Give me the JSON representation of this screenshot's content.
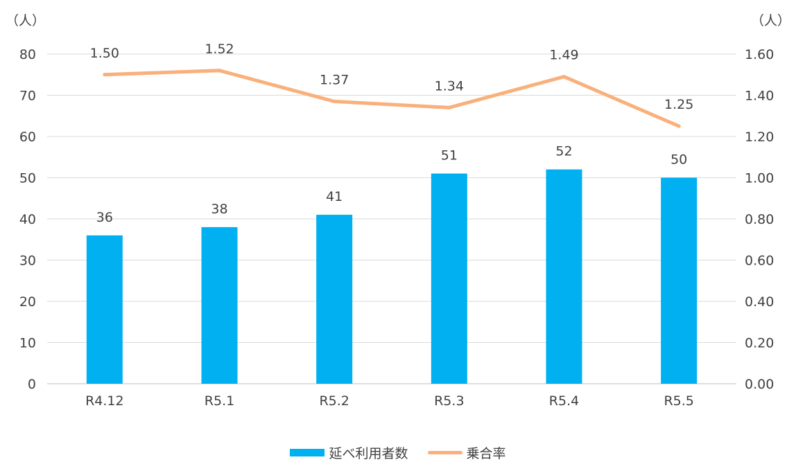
{
  "chart_data": {
    "type": "bar",
    "categories": [
      "R4.12",
      "R5.1",
      "R5.2",
      "R5.3",
      "R5.4",
      "R5.5"
    ],
    "series": [
      {
        "name": "延べ利用者数",
        "type": "bar",
        "axis": "left",
        "color": "#00b0f0",
        "values": [
          36,
          38,
          41,
          51,
          52,
          50
        ],
        "labels": [
          "36",
          "38",
          "41",
          "51",
          "52",
          "50"
        ]
      },
      {
        "name": "乗合率",
        "type": "line",
        "axis": "right",
        "color": "#f9b07a",
        "values": [
          1.5,
          1.52,
          1.37,
          1.34,
          1.49,
          1.25
        ],
        "labels": [
          "1.50",
          "1.52",
          "1.37",
          "1.34",
          "1.49",
          "1.25"
        ]
      }
    ],
    "y_left": {
      "unit": "（人）",
      "ylim": [
        0,
        80
      ],
      "ticks": [
        "0",
        "10",
        "20",
        "30",
        "40",
        "50",
        "60",
        "70",
        "80"
      ]
    },
    "y_right": {
      "unit": "（人）",
      "ylim": [
        0,
        1.6
      ],
      "ticks": [
        "0.00",
        "0.20",
        "0.40",
        "0.60",
        "0.80",
        "1.00",
        "1.20",
        "1.40",
        "1.60"
      ]
    },
    "grid": true,
    "legend_position": "bottom"
  }
}
